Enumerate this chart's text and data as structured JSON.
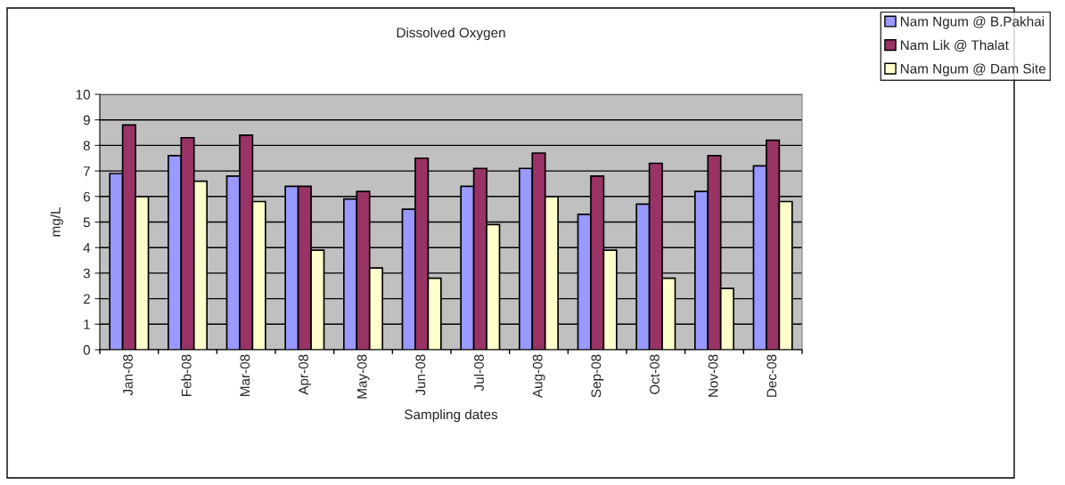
{
  "chart_data": {
    "type": "bar",
    "title": "Dissolved Oxygen",
    "xlabel": "Sampling dates",
    "ylabel": "mg/L",
    "categories": [
      "Jan-08",
      "Feb-08",
      "Mar-08",
      "Apr-08",
      "May-08",
      "Jun-08",
      "Jul-08",
      "Aug-08",
      "Sep-08",
      "Oct-08",
      "Nov-08",
      "Dec-08"
    ],
    "series": [
      {
        "name": "Nam Ngum @ B.Pakhai",
        "color": "#9999ff",
        "values": [
          6.9,
          7.6,
          6.8,
          6.4,
          5.9,
          5.5,
          6.4,
          7.1,
          5.3,
          5.7,
          6.2,
          7.2
        ]
      },
      {
        "name": "Nam Lik @ Thalat",
        "color": "#993366",
        "values": [
          8.8,
          8.3,
          8.4,
          6.4,
          6.2,
          7.5,
          7.1,
          7.7,
          6.8,
          7.3,
          7.6,
          8.2
        ]
      },
      {
        "name": "Nam Ngum @ Dam Site",
        "color": "#ffffcc",
        "values": [
          6.0,
          6.6,
          5.8,
          3.9,
          3.2,
          2.8,
          4.9,
          6.0,
          3.9,
          2.8,
          2.4,
          5.8
        ]
      }
    ],
    "ylim": [
      0,
      10
    ],
    "yticks": [
      0,
      1,
      2,
      3,
      4,
      5,
      6,
      7,
      8,
      9,
      10
    ],
    "grid": "y",
    "legend": "top right"
  }
}
